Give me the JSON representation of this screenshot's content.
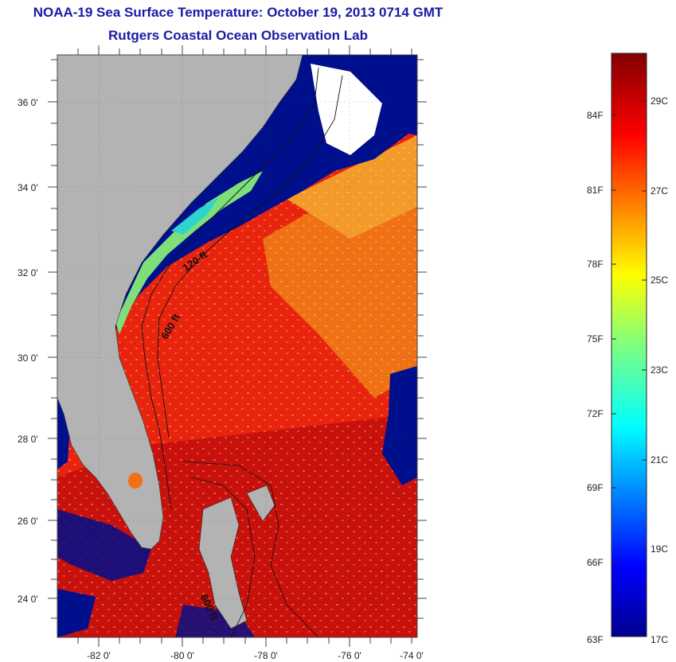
{
  "header": {
    "title": "NOAA-19 Sea Surface Temperature:  October 19, 2013 0714 GMT",
    "subtitle": "Rutgers Coastal Ocean Observation Lab"
  },
  "map": {
    "lat_labels": [
      "36 0'",
      "34 0'",
      "32 0'",
      "30 0'",
      "28 0'",
      "26 0'",
      "24 0'"
    ],
    "lon_labels": [
      "-82 0'",
      "-80 0'",
      "-78 0'",
      "-76 0'",
      "-74 0'"
    ],
    "contour_labels": [
      "120 ft",
      "600 ft",
      "600 ft"
    ],
    "colors": {
      "land": "#b3b3b3",
      "cloud": "#000f8c",
      "warm_water": "#e8240f",
      "hot_water": "#c8100c",
      "mid_water": "#f07016",
      "cool_water": "#7fe07a"
    }
  },
  "colorbar": {
    "fahrenheit_labels": [
      "84F",
      "81F",
      "78F",
      "75F",
      "72F",
      "69F",
      "66F",
      "63F"
    ],
    "celsius_labels": [
      "29C",
      "27C",
      "25C",
      "23C",
      "21C",
      "19C",
      "17C"
    ],
    "range_celsius": [
      17,
      30
    ],
    "colormap": "jet"
  }
}
